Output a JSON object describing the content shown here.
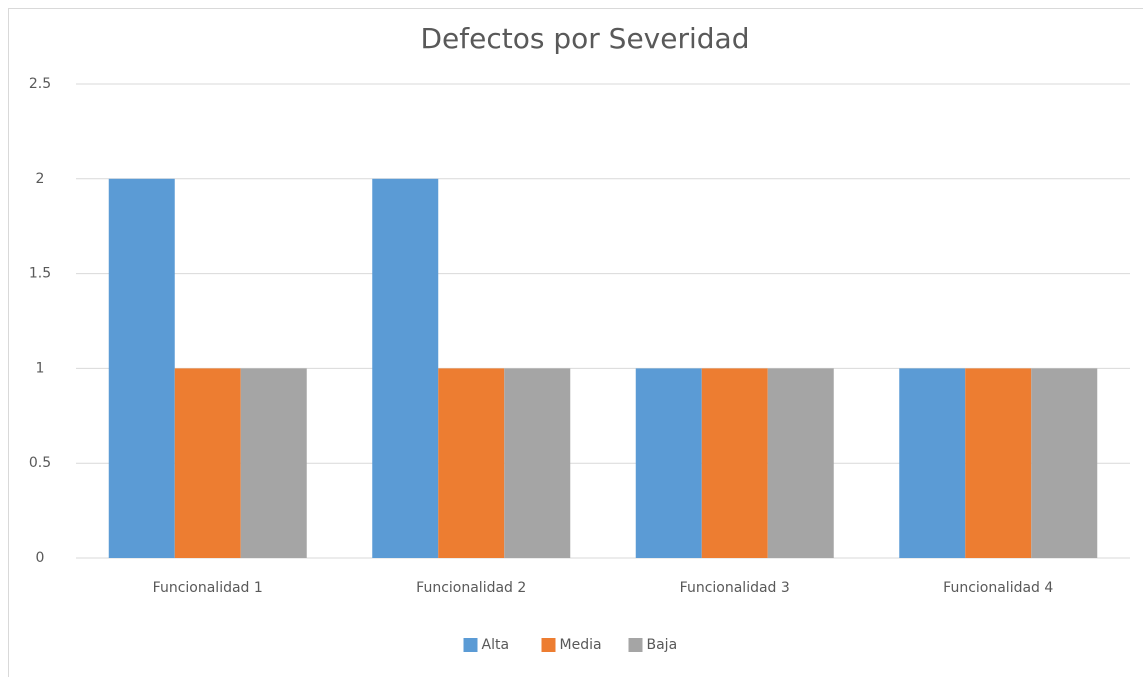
{
  "chart_data": {
    "type": "bar",
    "title": "Defectos por Severidad",
    "categories": [
      "Funcionalidad 1",
      "Funcionalidad 2",
      "Funcionalidad 3",
      "Funcionalidad 4"
    ],
    "series": [
      {
        "name": "Alta",
        "color": "#5b9bd5",
        "values": [
          2,
          2,
          1,
          1
        ]
      },
      {
        "name": "Media",
        "color": "#ed7d31",
        "values": [
          1,
          1,
          1,
          1
        ]
      },
      {
        "name": "Baja",
        "color": "#a5a5a5",
        "values": [
          1,
          1,
          1,
          1
        ]
      }
    ],
    "ylim": [
      0,
      2.5
    ],
    "yticks": [
      0,
      0.5,
      1,
      1.5,
      2,
      2.5
    ],
    "grid": true,
    "legend": "bottom"
  }
}
